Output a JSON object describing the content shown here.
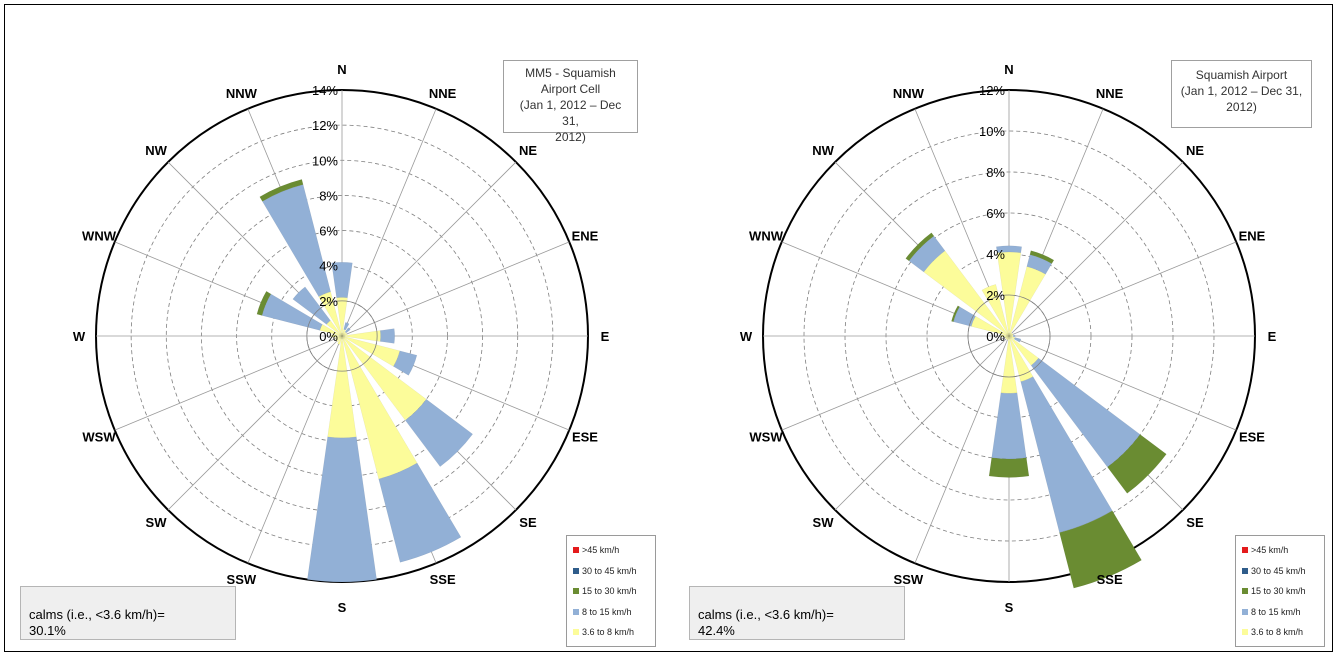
{
  "colors": {
    "gt45": "#e41a1c",
    "30to45": "#2f5c8a",
    "15to30": "#6a8c32",
    "8to15": "#92b0d6",
    "3.6to8": "#fcfc9a",
    "ring": "#7f7f7f",
    "spoke": "#9a9a9a"
  },
  "directions": [
    "N",
    "NNE",
    "NE",
    "ENE",
    "E",
    "ESE",
    "SE",
    "SSE",
    "S",
    "SSW",
    "SW",
    "WSW",
    "W",
    "WNW",
    "NW",
    "NNW"
  ],
  "legend": [
    {
      "key": "gt45",
      "label": ">45 km/h"
    },
    {
      "key": "30to45",
      "label": "30 to 45 km/h"
    },
    {
      "key": "15to30",
      "label": "15 to 30 km/h"
    },
    {
      "key": "8to15",
      "label": "8 to 15 km/h"
    },
    {
      "key": "3.6to8",
      "label": "3.6 to 8 km/h"
    }
  ],
  "chart_data": [
    {
      "type": "wind_rose",
      "title": "MM5 - Squamish Airport Cell (Jan 1, 2012 – Dec 31, 2012)",
      "title_lines": [
        "MM5 - Squamish",
        "Airport Cell",
        "(Jan 1, 2012 – Dec 31,",
        "2012)"
      ],
      "calms_label": "calms (i.e., <3.6 km/h)=",
      "calms_value": "30.1%",
      "max": 14,
      "ticks": [
        0,
        2,
        4,
        6,
        8,
        10,
        12,
        14
      ],
      "tick_labels": [
        "0%",
        "2%",
        "4%",
        "6%",
        "8%",
        "10%",
        "12%",
        "14%"
      ],
      "series_order": [
        "3.6to8",
        "8to15",
        "15to30",
        "30to45",
        "gt45"
      ],
      "frequencies": {
        "3.6to8": [
          2.2,
          0.4,
          0.3,
          0.3,
          2.2,
          3.4,
          6.0,
          8.4,
          5.8,
          0.5,
          0.4,
          0.4,
          0.6,
          1.3,
          1.1,
          2.6
        ],
        "8to15": [
          2.0,
          0.4,
          0.3,
          0.0,
          0.8,
          1.0,
          3.3,
          4.9,
          8.2,
          0.0,
          0.0,
          0.0,
          0.0,
          3.4,
          2.4,
          6.3
        ],
        "15to30": [
          0.0,
          0.0,
          0.0,
          0.0,
          0.0,
          0.0,
          0.0,
          0.0,
          0.0,
          0.0,
          0.0,
          0.0,
          0.0,
          0.3,
          0.0,
          0.3
        ],
        "30to45": [
          0.0,
          0.0,
          0.0,
          0.0,
          0.0,
          0.0,
          0.0,
          0.0,
          0.0,
          0.0,
          0.0,
          0.0,
          0.0,
          0.0,
          0.0,
          0.0
        ],
        "gt45": [
          0.0,
          0.0,
          0.0,
          0.0,
          0.0,
          0.0,
          0.0,
          0.0,
          0.0,
          0.0,
          0.0,
          0.0,
          0.0,
          0.0,
          0.0,
          0.0
        ]
      }
    },
    {
      "type": "wind_rose",
      "title": "Squamish Airport (Jan 1, 2012 – Dec 31, 2012)",
      "title_lines": [
        "Squamish Airport",
        "(Jan 1, 2012 – Dec 31,",
        "2012)"
      ],
      "calms_label": "calms (i.e., <3.6 km/h)=",
      "calms_value": "42.4%",
      "max": 12,
      "ticks": [
        0,
        2,
        4,
        6,
        8,
        10,
        12
      ],
      "tick_labels": [
        "0%",
        "2%",
        "4%",
        "6%",
        "8%",
        "10%",
        "12%"
      ],
      "series_order": [
        "3.6to8",
        "8to15",
        "15to30",
        "30to45",
        "gt45"
      ],
      "frequencies": {
        "3.6to8": [
          4.1,
          3.5,
          0.2,
          0.2,
          0.2,
          0.3,
          1.8,
          2.3,
          2.8,
          0.2,
          0.2,
          0.2,
          0.4,
          1.9,
          5.2,
          2.6
        ],
        "8to15": [
          0.3,
          0.6,
          0.0,
          0.0,
          0.1,
          0.3,
          6.2,
          7.6,
          3.2,
          0.0,
          0.0,
          0.0,
          0.0,
          0.9,
          0.9,
          0.0
        ],
        "15to30": [
          0.0,
          0.2,
          0.0,
          0.0,
          0.0,
          0.0,
          1.6,
          2.8,
          0.9,
          0.0,
          0.0,
          0.0,
          0.0,
          0.1,
          0.2,
          0.0
        ],
        "30to45": [
          0.0,
          0.0,
          0.0,
          0.0,
          0.0,
          0.0,
          0.0,
          0.0,
          0.0,
          0.0,
          0.0,
          0.0,
          0.0,
          0.0,
          0.0,
          0.0
        ],
        "gt45": [
          0.0,
          0.0,
          0.0,
          0.0,
          0.0,
          0.0,
          0.0,
          0.0,
          0.0,
          0.0,
          0.0,
          0.0,
          0.0,
          0.0,
          0.0,
          0.0
        ]
      }
    }
  ]
}
